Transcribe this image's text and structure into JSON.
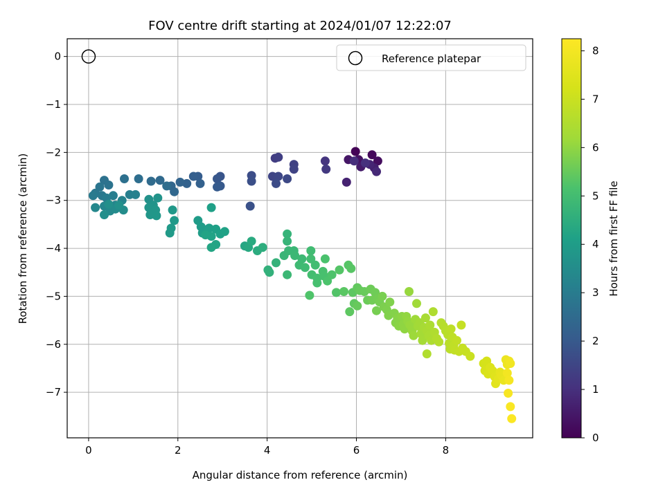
{
  "chart_data": {
    "type": "scatter",
    "title": "FOV centre drift starting at 2024/01/07 12:22:07",
    "xlabel": "Angular distance from reference (arcmin)",
    "ylabel": "Rotation from reference (arcmin)",
    "xlim": [
      -0.48,
      9.95
    ],
    "ylim": [
      -7.95,
      0.37
    ],
    "xticks": [
      0,
      2,
      4,
      6,
      8
    ],
    "yticks": [
      0,
      -1,
      -2,
      -3,
      -4,
      -5,
      -6,
      -7
    ],
    "grid": true,
    "legend": {
      "position": "top-right",
      "entries": [
        "Reference platepar"
      ]
    },
    "reference_point": {
      "x": 0,
      "y": 0
    },
    "colorbar": {
      "label": "Hours from first FF file",
      "min": 0,
      "max": 8.25,
      "ticks": [
        0,
        1,
        2,
        3,
        4,
        5,
        6,
        7,
        8
      ],
      "colormap": "viridis"
    },
    "columns": [
      "x",
      "y",
      "hours"
    ],
    "points": [
      [
        5.98,
        -1.98,
        0.05
      ],
      [
        6.35,
        -2.05,
        0.15
      ],
      [
        6.48,
        -2.18,
        0.25
      ],
      [
        6.05,
        -2.15,
        0.35
      ],
      [
        5.82,
        -2.15,
        0.45
      ],
      [
        6.1,
        -2.3,
        0.55
      ],
      [
        6.4,
        -2.32,
        0.65
      ],
      [
        6.3,
        -2.25,
        0.75
      ],
      [
        6.45,
        -2.4,
        0.85
      ],
      [
        5.95,
        -2.18,
        0.95
      ],
      [
        6.2,
        -2.22,
        1.0
      ],
      [
        5.78,
        -2.62,
        0.7
      ],
      [
        5.3,
        -2.18,
        1.1
      ],
      [
        5.32,
        -2.35,
        1.2
      ],
      [
        4.18,
        -2.12,
        1.3
      ],
      [
        4.25,
        -2.1,
        1.35
      ],
      [
        4.6,
        -2.25,
        1.4
      ],
      [
        4.6,
        -2.35,
        1.45
      ],
      [
        4.12,
        -2.5,
        1.5
      ],
      [
        4.25,
        -2.5,
        1.55
      ],
      [
        4.45,
        -2.55,
        1.6
      ],
      [
        4.2,
        -2.65,
        1.65
      ],
      [
        3.65,
        -2.48,
        1.7
      ],
      [
        3.65,
        -2.6,
        1.75
      ],
      [
        3.62,
        -3.12,
        1.8
      ],
      [
        2.95,
        -2.5,
        1.9
      ],
      [
        2.88,
        -2.55,
        1.95
      ],
      [
        2.95,
        -2.7,
        2.0
      ],
      [
        2.88,
        -2.72,
        2.05
      ],
      [
        2.45,
        -2.5,
        2.1
      ],
      [
        2.35,
        -2.5,
        2.15
      ],
      [
        2.5,
        -2.65,
        2.2
      ],
      [
        2.2,
        -2.65,
        2.25
      ],
      [
        2.05,
        -2.62,
        2.3
      ],
      [
        1.85,
        -2.7,
        2.35
      ],
      [
        1.92,
        -2.82,
        2.4
      ],
      [
        1.6,
        -2.58,
        2.45
      ],
      [
        1.4,
        -2.6,
        2.5
      ],
      [
        1.75,
        -2.7,
        2.55
      ],
      [
        1.12,
        -2.55,
        2.6
      ],
      [
        0.8,
        -2.55,
        2.65
      ],
      [
        0.35,
        -2.58,
        2.7
      ],
      [
        0.45,
        -2.68,
        2.75
      ],
      [
        0.25,
        -2.72,
        2.8
      ],
      [
        0.15,
        -2.85,
        2.85
      ],
      [
        0.3,
        -2.9,
        2.9
      ],
      [
        0.1,
        -2.9,
        2.95
      ],
      [
        0.4,
        -2.95,
        3.0
      ],
      [
        0.55,
        -2.9,
        3.05
      ],
      [
        0.92,
        -2.88,
        3.1
      ],
      [
        1.05,
        -2.88,
        3.15
      ],
      [
        0.75,
        -3.0,
        3.2
      ],
      [
        0.6,
        -3.1,
        3.25
      ],
      [
        0.35,
        -3.12,
        3.3
      ],
      [
        0.15,
        -3.15,
        3.35
      ],
      [
        0.48,
        -3.22,
        3.4
      ],
      [
        0.6,
        -3.18,
        3.45
      ],
      [
        0.78,
        -3.2,
        3.5
      ],
      [
        0.35,
        -3.3,
        3.55
      ],
      [
        0.68,
        -3.1,
        3.6
      ],
      [
        0.45,
        -3.08,
        3.58
      ],
      [
        1.35,
        -2.98,
        3.65
      ],
      [
        1.55,
        -2.95,
        3.7
      ],
      [
        1.45,
        -3.1,
        3.72
      ],
      [
        1.35,
        -3.15,
        3.75
      ],
      [
        1.5,
        -3.2,
        3.78
      ],
      [
        1.38,
        -3.3,
        3.8
      ],
      [
        1.52,
        -3.32,
        3.82
      ],
      [
        1.88,
        -3.2,
        3.85
      ],
      [
        1.92,
        -3.42,
        3.88
      ],
      [
        1.85,
        -3.58,
        3.9
      ],
      [
        1.82,
        -3.68,
        3.92
      ],
      [
        2.45,
        -3.42,
        3.95
      ],
      [
        2.52,
        -3.55,
        3.98
      ],
      [
        2.55,
        -3.68,
        4.0
      ],
      [
        2.7,
        -3.58,
        4.05
      ],
      [
        2.75,
        -3.15,
        4.08
      ],
      [
        2.85,
        -3.6,
        4.1
      ],
      [
        2.95,
        -3.7,
        4.12
      ],
      [
        3.05,
        -3.65,
        4.15
      ],
      [
        2.75,
        -3.75,
        4.18
      ],
      [
        2.62,
        -3.72,
        4.2
      ],
      [
        2.85,
        -3.92,
        4.22
      ],
      [
        2.75,
        -3.98,
        4.24
      ],
      [
        3.5,
        -3.95,
        4.3
      ],
      [
        3.58,
        -3.98,
        4.35
      ],
      [
        3.65,
        -3.85,
        4.4
      ],
      [
        3.78,
        -4.05,
        4.45
      ],
      [
        3.9,
        -3.98,
        4.5
      ],
      [
        4.02,
        -4.45,
        4.6
      ],
      [
        4.05,
        -4.5,
        4.62
      ],
      [
        4.2,
        -4.3,
        4.65
      ],
      [
        4.45,
        -3.7,
        4.7
      ],
      [
        4.45,
        -3.85,
        4.72
      ],
      [
        4.38,
        -4.15,
        4.75
      ],
      [
        4.48,
        -4.05,
        4.78
      ],
      [
        4.6,
        -4.05,
        4.8
      ],
      [
        4.62,
        -4.15,
        4.82
      ],
      [
        4.45,
        -4.55,
        4.85
      ],
      [
        4.78,
        -4.22,
        4.88
      ],
      [
        4.72,
        -4.35,
        4.9
      ],
      [
        4.85,
        -4.4,
        4.92
      ],
      [
        4.98,
        -4.05,
        4.95
      ],
      [
        4.98,
        -4.22,
        4.98
      ],
      [
        5.08,
        -4.35,
        5.0
      ],
      [
        5.0,
        -4.55,
        5.02
      ],
      [
        5.12,
        -4.62,
        5.05
      ],
      [
        5.12,
        -4.72,
        5.08
      ],
      [
        5.25,
        -4.48,
        5.1
      ],
      [
        5.28,
        -4.58,
        5.12
      ],
      [
        5.3,
        -4.22,
        5.15
      ],
      [
        5.35,
        -4.68,
        5.18
      ],
      [
        5.45,
        -4.55,
        5.2
      ],
      [
        4.95,
        -4.98,
        5.22
      ],
      [
        5.55,
        -4.92,
        5.25
      ],
      [
        5.62,
        -4.45,
        5.28
      ],
      [
        5.82,
        -4.35,
        5.3
      ],
      [
        5.88,
        -4.42,
        5.32
      ],
      [
        5.72,
        -4.9,
        5.35
      ],
      [
        5.92,
        -4.92,
        5.38
      ],
      [
        5.85,
        -5.32,
        5.4
      ],
      [
        5.95,
        -5.15,
        5.42
      ],
      [
        6.02,
        -4.82,
        5.45
      ],
      [
        6.08,
        -4.88,
        5.48
      ],
      [
        6.02,
        -5.2,
        5.5
      ],
      [
        6.18,
        -4.9,
        5.52
      ],
      [
        6.25,
        -5.08,
        5.55
      ],
      [
        6.32,
        -4.85,
        5.58
      ],
      [
        6.42,
        -4.92,
        5.6
      ],
      [
        6.35,
        -5.08,
        5.62
      ],
      [
        6.48,
        -5.05,
        5.65
      ],
      [
        6.52,
        -5.12,
        5.68
      ],
      [
        6.45,
        -5.3,
        5.7
      ],
      [
        6.58,
        -5.0,
        5.72
      ],
      [
        6.62,
        -5.22,
        5.75
      ],
      [
        6.68,
        -5.28,
        5.78
      ],
      [
        6.75,
        -5.12,
        5.8
      ],
      [
        6.72,
        -5.4,
        5.82
      ],
      [
        6.85,
        -5.35,
        5.85
      ],
      [
        6.88,
        -5.55,
        5.88
      ],
      [
        6.92,
        -5.45,
        5.9
      ],
      [
        6.95,
        -5.62,
        5.92
      ],
      [
        7.02,
        -5.42,
        5.95
      ],
      [
        7.05,
        -5.58,
        5.98
      ],
      [
        7.08,
        -5.68,
        6.0
      ],
      [
        7.12,
        -5.42,
        6.02
      ],
      [
        7.15,
        -5.52,
        6.05
      ],
      [
        7.18,
        -4.9,
        6.08
      ],
      [
        7.2,
        -5.6,
        6.1
      ],
      [
        7.25,
        -5.72,
        6.12
      ],
      [
        7.28,
        -5.82,
        6.15
      ],
      [
        7.32,
        -5.48,
        6.18
      ],
      [
        7.35,
        -5.15,
        6.2
      ],
      [
        7.38,
        -5.62,
        6.22
      ],
      [
        7.42,
        -5.55,
        6.25
      ],
      [
        7.45,
        -5.78,
        6.28
      ],
      [
        7.48,
        -5.92,
        6.3
      ],
      [
        7.52,
        -5.65,
        6.32
      ],
      [
        7.55,
        -5.45,
        6.35
      ],
      [
        7.58,
        -5.72,
        6.38
      ],
      [
        7.62,
        -5.82,
        6.4
      ],
      [
        7.65,
        -5.6,
        6.42
      ],
      [
        7.68,
        -5.92,
        6.45
      ],
      [
        7.72,
        -5.32,
        6.48
      ],
      [
        7.75,
        -5.75,
        6.5
      ],
      [
        7.58,
        -6.2,
        6.52
      ],
      [
        7.8,
        -5.88,
        6.55
      ],
      [
        7.85,
        -5.95,
        6.58
      ],
      [
        7.9,
        -5.55,
        6.6
      ],
      [
        7.95,
        -5.62,
        6.62
      ],
      [
        8.0,
        -5.72,
        6.65
      ],
      [
        8.05,
        -5.8,
        6.68
      ],
      [
        8.08,
        -5.98,
        6.7
      ],
      [
        8.1,
        -6.1,
        6.72
      ],
      [
        8.12,
        -5.68,
        6.75
      ],
      [
        8.15,
        -5.85,
        6.78
      ],
      [
        8.18,
        -6.02,
        6.8
      ],
      [
        8.2,
        -6.12,
        6.82
      ],
      [
        8.25,
        -5.92,
        6.85
      ],
      [
        8.3,
        -6.15,
        6.88
      ],
      [
        8.35,
        -5.6,
        6.9
      ],
      [
        8.38,
        -6.08,
        6.92
      ],
      [
        8.45,
        -6.15,
        6.95
      ],
      [
        8.55,
        -6.25,
        6.98
      ],
      [
        8.85,
        -6.4,
        7.2
      ],
      [
        8.92,
        -6.35,
        7.25
      ],
      [
        8.88,
        -6.55,
        7.3
      ],
      [
        8.95,
        -6.62,
        7.35
      ],
      [
        9.0,
        -6.48,
        7.4
      ],
      [
        9.05,
        -6.55,
        7.45
      ],
      [
        9.1,
        -6.68,
        7.5
      ],
      [
        9.12,
        -6.82,
        7.55
      ],
      [
        9.18,
        -6.72,
        7.6
      ],
      [
        9.22,
        -6.58,
        7.65
      ],
      [
        9.25,
        -6.65,
        7.7
      ],
      [
        9.3,
        -6.75,
        7.75
      ],
      [
        9.35,
        -6.32,
        7.8
      ],
      [
        9.38,
        -6.42,
        7.85
      ],
      [
        9.42,
        -6.35,
        7.9
      ],
      [
        9.45,
        -6.4,
        7.95
      ],
      [
        9.38,
        -6.6,
        8.0
      ],
      [
        9.42,
        -6.75,
        8.05
      ],
      [
        9.4,
        -7.02,
        8.1
      ],
      [
        9.45,
        -7.3,
        8.15
      ],
      [
        9.48,
        -7.55,
        8.2
      ]
    ]
  }
}
